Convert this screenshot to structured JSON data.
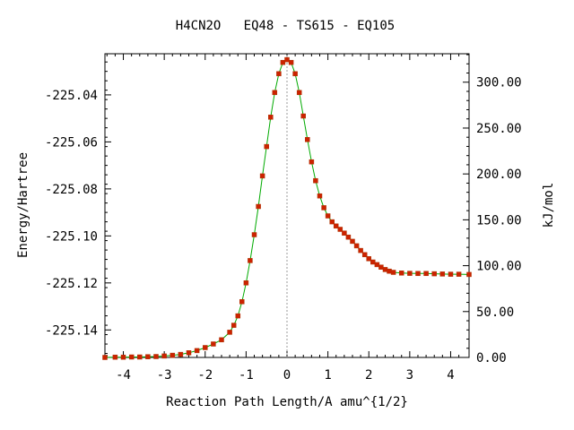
{
  "chart_data": {
    "type": "line",
    "title": "H4CN2O   EQ48 - TS615 - EQ105",
    "xlabel": "Reaction Path Length/A amu^{1/2}",
    "ylabel": "Energy/Hartree",
    "y2label": "kJ/mol",
    "xlim": [
      -4.45,
      4.45
    ],
    "ylim": [
      -225.1517,
      -225.0225
    ],
    "y2lim": [
      0,
      331
    ],
    "grid": false,
    "legend": "none",
    "x_ticks": [
      "-4",
      "-3",
      "-2",
      "-1",
      "0",
      "1",
      "2",
      "3",
      "4"
    ],
    "y_ticks": [
      "-225.04",
      "-225.06",
      "-225.08",
      "-225.10",
      "-225.12",
      "-225.14"
    ],
    "y2_ticks": [
      "300.00",
      "250.00",
      "200.00",
      "150.00",
      "100.00",
      "50.00",
      "0.00"
    ],
    "ts_line_x": 0,
    "series": [
      {
        "line_color": "#00aa00",
        "marker_color": "#cc2200",
        "points": [
          [
            -4.45,
            -225.1517
          ],
          [
            -4.2,
            -225.1516
          ],
          [
            -4.0,
            -225.1516
          ],
          [
            -3.8,
            -225.1515
          ],
          [
            -3.6,
            -225.1515
          ],
          [
            -3.4,
            -225.1514
          ],
          [
            -3.2,
            -225.1513
          ],
          [
            -3.0,
            -225.1511
          ],
          [
            -2.8,
            -225.1508
          ],
          [
            -2.6,
            -225.1504
          ],
          [
            -2.4,
            -225.1497
          ],
          [
            -2.2,
            -225.1488
          ],
          [
            -2.0,
            -225.1475
          ],
          [
            -1.8,
            -225.146
          ],
          [
            -1.6,
            -225.1442
          ],
          [
            -1.4,
            -225.141
          ],
          [
            -1.3,
            -225.138
          ],
          [
            -1.2,
            -225.134
          ],
          [
            -1.1,
            -225.128
          ],
          [
            -1.0,
            -225.12
          ],
          [
            -0.9,
            -225.1105
          ],
          [
            -0.8,
            -225.0995
          ],
          [
            -0.7,
            -225.0875
          ],
          [
            -0.6,
            -225.0745
          ],
          [
            -0.5,
            -225.062
          ],
          [
            -0.4,
            -225.0495
          ],
          [
            -0.3,
            -225.039
          ],
          [
            -0.2,
            -225.031
          ],
          [
            -0.1,
            -225.0262
          ],
          [
            0.0,
            -225.025
          ],
          [
            0.1,
            -225.0262
          ],
          [
            0.2,
            -225.031
          ],
          [
            0.3,
            -225.039
          ],
          [
            0.4,
            -225.049
          ],
          [
            0.5,
            -225.059
          ],
          [
            0.6,
            -225.0685
          ],
          [
            0.7,
            -225.0765
          ],
          [
            0.8,
            -225.083
          ],
          [
            0.9,
            -225.088
          ],
          [
            1.0,
            -225.0915
          ],
          [
            1.1,
            -225.094
          ],
          [
            1.2,
            -225.0958
          ],
          [
            1.3,
            -225.0972
          ],
          [
            1.4,
            -225.0988
          ],
          [
            1.5,
            -225.1005
          ],
          [
            1.6,
            -225.1023
          ],
          [
            1.7,
            -225.1042
          ],
          [
            1.8,
            -225.1062
          ],
          [
            1.9,
            -225.108
          ],
          [
            2.0,
            -225.1097
          ],
          [
            2.1,
            -225.1111
          ],
          [
            2.2,
            -225.1122
          ],
          [
            2.3,
            -225.1133
          ],
          [
            2.4,
            -225.1143
          ],
          [
            2.5,
            -225.115
          ],
          [
            2.6,
            -225.1155
          ],
          [
            2.8,
            -225.1158
          ],
          [
            3.0,
            -225.1159
          ],
          [
            3.2,
            -225.116
          ],
          [
            3.4,
            -225.116
          ],
          [
            3.6,
            -225.1161
          ],
          [
            3.8,
            -225.1162
          ],
          [
            4.0,
            -225.1163
          ],
          [
            4.2,
            -225.1163
          ],
          [
            4.45,
            -225.1164
          ]
        ]
      }
    ]
  }
}
